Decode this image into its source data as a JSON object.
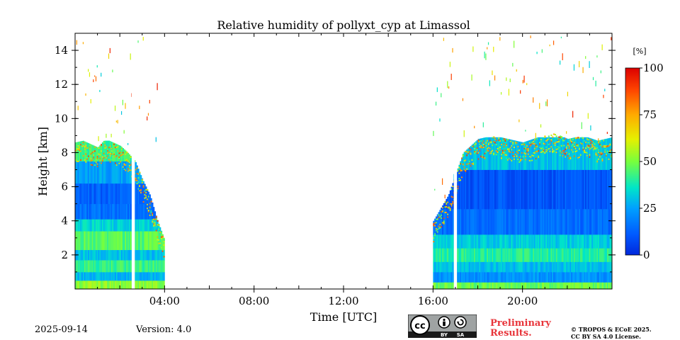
{
  "chart_data": {
    "type": "heatmap",
    "title": "Relative humidity of pollyxt_cyp at Limassol",
    "xlabel": "Time [UTC]",
    "ylabel": "Height [km]",
    "xlim_hours": [
      0,
      24
    ],
    "ylim_km": [
      0,
      15
    ],
    "x_ticks": [
      {
        "hour": 4,
        "label": "04:00"
      },
      {
        "hour": 8,
        "label": "08:00"
      },
      {
        "hour": 12,
        "label": "12:00"
      },
      {
        "hour": 16,
        "label": "16:00"
      },
      {
        "hour": 20,
        "label": "20:00"
      }
    ],
    "y_ticks": [
      {
        "value": 2,
        "label": "2"
      },
      {
        "value": 4,
        "label": "4"
      },
      {
        "value": 6,
        "label": "6"
      },
      {
        "value": 8,
        "label": "8"
      },
      {
        "value": 10,
        "label": "10"
      },
      {
        "value": 12,
        "label": "12"
      },
      {
        "value": 14,
        "label": "14"
      }
    ],
    "colorbar": {
      "unit": "[%]",
      "range": [
        0,
        100
      ],
      "colormap": "jet",
      "ticks": [
        {
          "value": 0,
          "label": "0"
        },
        {
          "value": 25,
          "label": "25"
        },
        {
          "value": 50,
          "label": "50"
        },
        {
          "value": 75,
          "label": "75"
        },
        {
          "value": 100,
          "label": "100"
        }
      ]
    },
    "data_segments": [
      {
        "start_hour": 0.0,
        "end_hour": 4.0,
        "top_km": [
          8.6,
          8.7,
          8.5,
          8.3,
          8.8,
          8.6,
          8.4,
          8.0,
          7.5,
          6.4,
          5.5,
          4.0,
          2.8
        ],
        "layers": [
          {
            "bottom_km": 0.0,
            "top_km": 0.5,
            "rh": 52
          },
          {
            "bottom_km": 0.5,
            "top_km": 1.0,
            "rh": 28
          },
          {
            "bottom_km": 1.0,
            "top_km": 1.7,
            "rh": 42
          },
          {
            "bottom_km": 1.7,
            "top_km": 2.3,
            "rh": 30
          },
          {
            "bottom_km": 2.3,
            "top_km": 3.4,
            "rh": 46
          },
          {
            "bottom_km": 3.4,
            "top_km": 4.1,
            "rh": 33
          },
          {
            "bottom_km": 4.1,
            "top_km": 5.0,
            "rh": 15
          },
          {
            "bottom_km": 5.0,
            "top_km": 6.2,
            "rh": 12
          },
          {
            "bottom_km": 6.2,
            "top_km": 7.5,
            "rh": 25
          },
          {
            "bottom_km": 7.5,
            "top_km": 8.7,
            "rh": 42
          }
        ]
      },
      {
        "start_hour": 16.0,
        "end_hour": 24.0,
        "top_km": [
          4.0,
          5.5,
          8.0,
          8.8,
          9.0,
          8.8,
          8.6,
          8.9,
          9.2,
          8.8,
          9.0,
          8.7,
          8.9
        ],
        "layers": [
          {
            "bottom_km": 0.0,
            "top_km": 0.4,
            "rh": 48
          },
          {
            "bottom_km": 0.4,
            "top_km": 1.0,
            "rh": 22
          },
          {
            "bottom_km": 1.0,
            "top_km": 1.6,
            "rh": 30
          },
          {
            "bottom_km": 1.6,
            "top_km": 2.4,
            "rh": 40
          },
          {
            "bottom_km": 2.4,
            "top_km": 3.2,
            "rh": 32
          },
          {
            "bottom_km": 3.2,
            "top_km": 4.7,
            "rh": 15
          },
          {
            "bottom_km": 4.7,
            "top_km": 7.0,
            "rh": 10
          },
          {
            "bottom_km": 7.0,
            "top_km": 8.9,
            "rh": 30
          }
        ]
      }
    ],
    "gaps": [
      {
        "start_hour": 2.53,
        "end_hour": 2.67
      },
      {
        "start_hour": 16.93,
        "end_hour": 17.07
      }
    ],
    "no_data": [
      {
        "start_hour": 4.0,
        "end_hour": 16.0
      }
    ]
  },
  "footer": {
    "date": "2025-09-14",
    "version": "Version: 4.0",
    "license_badge": {
      "cc": "cc",
      "by": "BY",
      "sa": "SA"
    },
    "preliminary": [
      "Preliminary",
      "Results."
    ],
    "copyright": [
      "© TROPOS & ECoE 2025.",
      "CC BY SA 4.0 License."
    ]
  },
  "colors": {
    "preliminary": "#e8353b",
    "badge_bg": "#9fa3a3",
    "badge_dark": "#1a1a1a"
  }
}
